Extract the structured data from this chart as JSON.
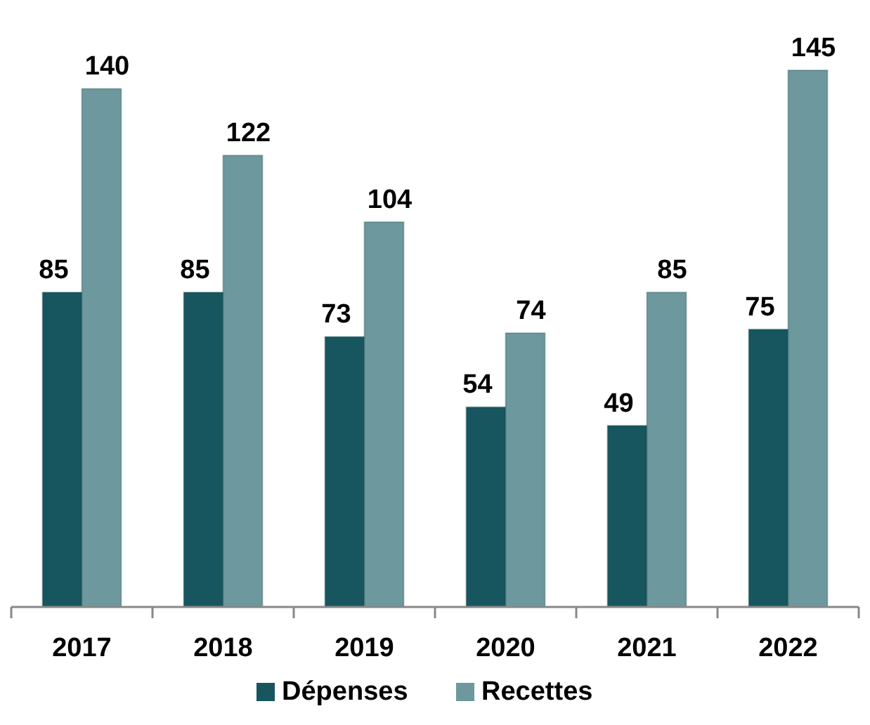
{
  "chart_data": {
    "type": "bar",
    "categories": [
      "2017",
      "2018",
      "2019",
      "2020",
      "2021",
      "2022"
    ],
    "series": [
      {
        "name": "Dépenses",
        "color": "#17565f",
        "values": [
          85,
          85,
          73,
          54,
          49,
          75
        ]
      },
      {
        "name": "Recettes",
        "color": "#6d999e",
        "values": [
          140,
          122,
          104,
          74,
          85,
          145
        ]
      }
    ],
    "data_labels": true,
    "tick_labels": "x",
    "grid": false,
    "legend": "bottom"
  }
}
